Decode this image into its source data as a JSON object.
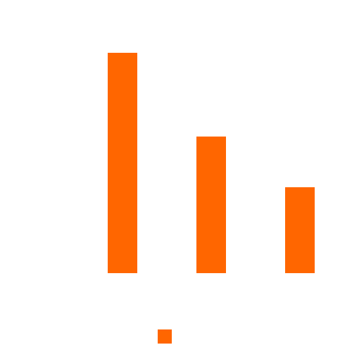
{
  "chart_data": {
    "type": "bar",
    "categories": [
      null,
      null,
      null
    ],
    "values": [
      100,
      62,
      39
    ],
    "color": "#ff6600",
    "ylim": [
      0,
      100
    ],
    "legend": "bottom"
  }
}
